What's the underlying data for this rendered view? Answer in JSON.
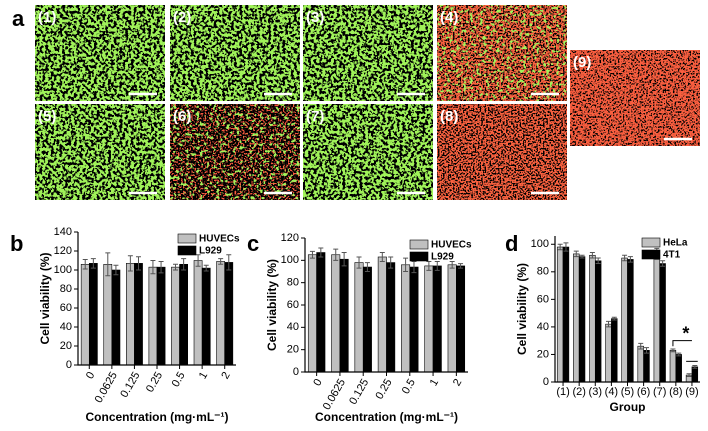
{
  "images": {
    "panel": "a",
    "labels": [
      "(1)",
      "(2)",
      "(3)",
      "(4)",
      "(5)",
      "(6)",
      "(7)",
      "(8)",
      "(9)"
    ]
  },
  "chart_data": [
    {
      "type": "bar",
      "panel": "b",
      "ylabel": "Cell viability (%)",
      "xlabel": "Concentration (mg·mL⁻¹)",
      "categories": [
        "0",
        "0.0625",
        "0.125",
        "0.25",
        "0.5",
        "1",
        "2"
      ],
      "series": [
        {
          "name": "HUVECs",
          "color": "#c0c0c0",
          "values": [
            106,
            106,
            107,
            103,
            103,
            110,
            109
          ],
          "errors": [
            5,
            12,
            8,
            7,
            3,
            6,
            3
          ]
        },
        {
          "name": "L929",
          "color": "#000000",
          "values": [
            107,
            100,
            107,
            103,
            106,
            102,
            108
          ],
          "errors": [
            5,
            5,
            7,
            6,
            6,
            3,
            8
          ]
        }
      ],
      "ylim": [
        0,
        140
      ],
      "yticks": [
        0,
        20,
        40,
        60,
        80,
        100,
        120,
        140
      ],
      "legend": "upper right"
    },
    {
      "type": "bar",
      "panel": "c",
      "ylabel": "Cell viability (%)",
      "xlabel": "Concentration (mg·mL⁻¹)",
      "categories": [
        "0",
        "0.0625",
        "0.125",
        "0.25",
        "0.5",
        "1",
        "2"
      ],
      "series": [
        {
          "name": "HUVECs",
          "color": "#c0c0c0",
          "values": [
            105,
            105,
            98,
            103,
            96,
            95,
            96
          ],
          "errors": [
            3,
            5,
            5,
            4,
            6,
            4,
            3
          ]
        },
        {
          "name": "L929",
          "color": "#000000",
          "values": [
            107,
            101,
            94,
            98,
            94,
            95,
            95
          ],
          "errors": [
            4,
            6,
            4,
            5,
            5,
            4,
            2
          ]
        }
      ],
      "ylim": [
        0,
        120
      ],
      "yticks": [
        0,
        20,
        40,
        60,
        80,
        100,
        120
      ],
      "legend": "upper right"
    },
    {
      "type": "bar",
      "panel": "d",
      "ylabel": "Cell viability (%)",
      "xlabel": "Group",
      "categories": [
        "(1)",
        "(2)",
        "(3)",
        "(4)",
        "(5)",
        "(6)",
        "(7)",
        "(8)",
        "(9)"
      ],
      "series": [
        {
          "name": "HeLa",
          "color": "#c0c0c0",
          "values": [
            98,
            93,
            92,
            42,
            90,
            26,
            93,
            23,
            5
          ],
          "errors": [
            2,
            2,
            2,
            2,
            2,
            2,
            4,
            1,
            1
          ]
        },
        {
          "name": "4T1",
          "color": "#000000",
          "values": [
            98,
            91,
            88,
            46,
            89,
            23,
            86,
            20,
            11
          ],
          "errors": [
            3,
            1,
            2,
            1,
            2,
            2,
            2,
            1,
            1
          ]
        }
      ],
      "ylim": [
        0,
        106
      ],
      "yticks": [
        0,
        20,
        40,
        60,
        80,
        100
      ],
      "legend": "upper right",
      "annotation": "*"
    }
  ]
}
